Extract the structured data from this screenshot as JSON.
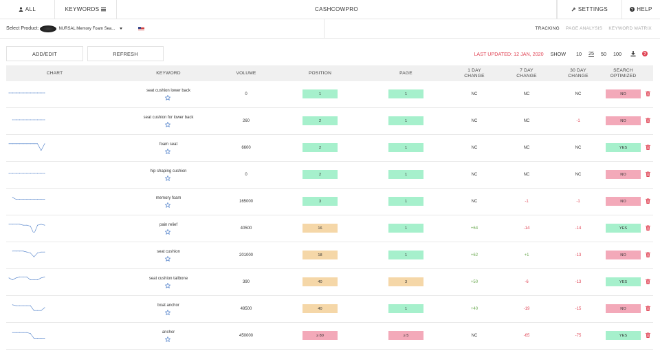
{
  "nav": {
    "all": "ALL",
    "keywords": "KEYWORDS",
    "brand": "CASHCOWPRO",
    "settings": "SETTINGS",
    "help": "HELP"
  },
  "product": {
    "label": "Select Product:",
    "name": "NURSAL Memory Foam Sea...",
    "marketplace": "US"
  },
  "tabs": {
    "tracking": "TRACKING",
    "page_analysis": "PAGE ANALYSIS",
    "keyword_matrix": "KEYWORD MATRIX"
  },
  "toolbar": {
    "add_edit": "ADD/EDIT",
    "refresh": "REFRESH",
    "last_updated": "LAST UPDATED: 12 JAN, 2020",
    "show": "SHOW",
    "page_sizes": [
      "10",
      "25",
      "50",
      "100"
    ],
    "selected_page_size": "25"
  },
  "columns": {
    "chart": "CHART",
    "keyword": "KEYWORD",
    "volume": "VOLUME",
    "position": "POSITION",
    "page": "PAGE",
    "day1_a": "1 DAY",
    "day1_b": "CHANGE",
    "day7_a": "7 DAY",
    "day7_b": "CHANGE",
    "day30_a": "30 DAY",
    "day30_b": "CHANGE",
    "opt_a": "SEARCH",
    "opt_b": "OPTIMIZED"
  },
  "colors": {
    "green": "#a6f0cc",
    "orange": "#f5d7a8",
    "red": "#f3a9b9",
    "negative": "#e04455",
    "positive": "#6aa84f",
    "spark": "#4a7cc8"
  },
  "rows": [
    {
      "keyword": "seat cushion lower back",
      "volume": "0",
      "position": "1",
      "position_color": "green",
      "page": "1",
      "page_color": "green",
      "d1": "NC",
      "d7": "NC",
      "d30": "NC",
      "optimized": "NO",
      "spark": [
        5,
        5,
        5,
        5,
        5,
        5,
        5,
        5,
        5,
        5,
        5
      ]
    },
    {
      "keyword": "seat cushion for lower back",
      "volume": "260",
      "position": "2",
      "position_color": "green",
      "page": "1",
      "page_color": "green",
      "d1": "NC",
      "d7": "NC",
      "d30": "-1",
      "optimized": "NO",
      "spark": [
        null,
        5,
        5,
        5,
        5,
        5,
        5,
        5,
        5,
        5,
        5
      ]
    },
    {
      "keyword": "foam seat",
      "volume": "6600",
      "position": "2",
      "position_color": "green",
      "page": "1",
      "page_color": "green",
      "d1": "NC",
      "d7": "NC",
      "d30": "NC",
      "optimized": "YES",
      "spark": [
        2,
        2,
        2,
        2,
        2,
        2,
        2,
        2,
        2,
        9,
        2
      ]
    },
    {
      "keyword": "hip shaping cushion",
      "volume": "0",
      "position": "2",
      "position_color": "green",
      "page": "1",
      "page_color": "green",
      "d1": "NC",
      "d7": "NC",
      "d30": "NC",
      "optimized": "NO",
      "spark": [
        5,
        5,
        5,
        5,
        5,
        5,
        5,
        5,
        5,
        5,
        5
      ]
    },
    {
      "keyword": "memory foam",
      "volume": "165000",
      "position": "3",
      "position_color": "green",
      "page": "1",
      "page_color": "green",
      "d1": "NC",
      "d7": "-1",
      "d30": "-1",
      "optimized": "NO",
      "spark": [
        null,
        2,
        4,
        4,
        4,
        4,
        4,
        4,
        4,
        4,
        4
      ]
    },
    {
      "keyword": "pain relief",
      "volume": "40500",
      "position": "16",
      "position_color": "orange",
      "page": "1",
      "page_color": "green",
      "d1": "+64",
      "d7": "-14",
      "d30": "-14",
      "optimized": "YES",
      "spark": [
        2,
        2,
        2,
        2,
        3,
        3,
        4,
        12,
        3,
        2,
        3
      ]
    },
    {
      "keyword": "seat cushion",
      "volume": "201000",
      "position": "18",
      "position_color": "orange",
      "page": "1",
      "page_color": "green",
      "d1": "+62",
      "d7": "+1",
      "d30": "-13",
      "optimized": "NO",
      "spark": [
        null,
        2,
        2,
        2,
        2,
        3,
        4,
        8,
        4,
        3,
        3
      ]
    },
    {
      "keyword": "seat cushion tailbone",
      "volume": "390",
      "position": "40",
      "position_color": "orange",
      "page": "3",
      "page_color": "orange",
      "d1": "+50",
      "d7": "-6",
      "d30": "-13",
      "optimized": "YES",
      "spark": [
        2,
        4,
        2,
        1,
        1,
        1,
        4,
        4,
        4,
        2,
        1
      ]
    },
    {
      "keyword": "boat anchor",
      "volume": "49500",
      "position": "40",
      "position_color": "orange",
      "page": "1",
      "page_color": "green",
      "d1": "+40",
      "d7": "-19",
      "d30": "-15",
      "optimized": "NO",
      "spark": [
        null,
        2,
        3,
        3,
        3,
        3,
        3,
        8,
        8,
        8,
        5
      ]
    },
    {
      "keyword": "anchor",
      "volume": "450000",
      "position": "≥ 80",
      "position_color": "red",
      "page": "≥ 5",
      "page_color": "red",
      "d1": "NC",
      "d7": "-65",
      "d30": "-75",
      "optimized": "YES",
      "spark": [
        null,
        3,
        3,
        3,
        3,
        3,
        4,
        9,
        9,
        9,
        9
      ]
    }
  ]
}
